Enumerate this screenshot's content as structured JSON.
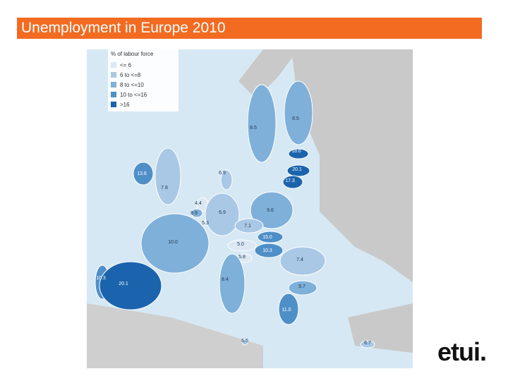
{
  "header": {
    "title": "Unemployment in Europe 2010"
  },
  "legend": {
    "title": "% of labour force",
    "items": [
      "<= 6",
      "6 to <=8",
      "8 to <=10",
      "10 to <=16",
      ">16"
    ]
  },
  "map": {
    "labels": [
      "8.5",
      "8.5",
      "18.6",
      "20.1",
      "17.3",
      "13.6",
      "7.8",
      "6.9",
      "4.4",
      "8.9",
      "5.3",
      "6.9",
      "9.6",
      "7.1",
      "15.0",
      "10.3",
      "10.0",
      "5.0",
      "5.8",
      "7.4",
      "10.3",
      "20.1",
      "8.4",
      "9.7",
      "11.0",
      "6.5",
      "6.7"
    ]
  },
  "footer": {
    "logo": "etui."
  }
}
